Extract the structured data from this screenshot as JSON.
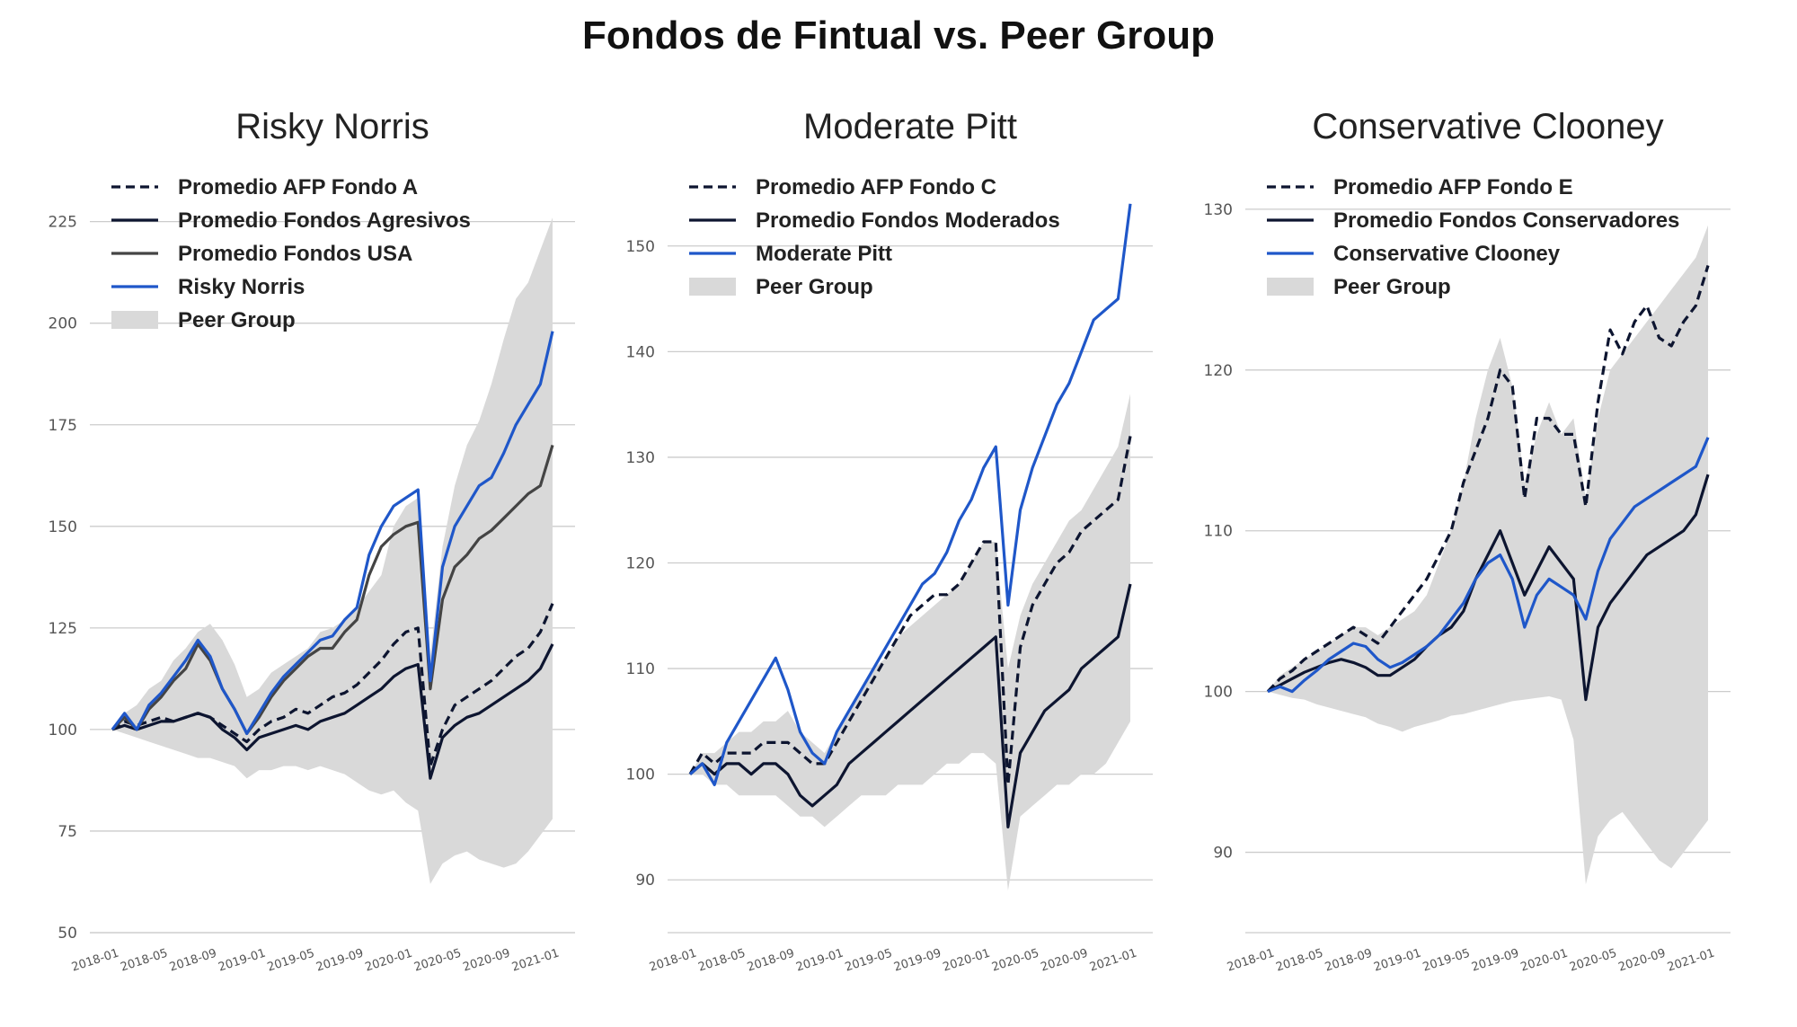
{
  "title": "Fondos de Fintual vs. Peer Group",
  "colors": {
    "blue": "#1f57c9",
    "navy": "#0d1530",
    "gray_line": "#444444",
    "band": "#d9d9d9",
    "grid": "#cccccc"
  },
  "chart_data": [
    {
      "type": "line",
      "title": "Risky Norris",
      "xlabel": "",
      "ylabel": "",
      "ylim": [
        50,
        232
      ],
      "yticks": [
        50,
        75,
        100,
        125,
        150,
        175,
        200,
        225
      ],
      "xticks": [
        "2018-01",
        "2018-05",
        "2018-09",
        "2019-01",
        "2019-05",
        "2019-09",
        "2020-01",
        "2020-05",
        "2020-09",
        "2021-01"
      ],
      "grid": "horizontal",
      "legend_position": "top-left",
      "x": [
        "2018-01",
        "2018-02",
        "2018-03",
        "2018-04",
        "2018-05",
        "2018-06",
        "2018-07",
        "2018-08",
        "2018-09",
        "2018-10",
        "2018-11",
        "2018-12",
        "2019-01",
        "2019-02",
        "2019-03",
        "2019-04",
        "2019-05",
        "2019-06",
        "2019-07",
        "2019-08",
        "2019-09",
        "2019-10",
        "2019-11",
        "2019-12",
        "2020-01",
        "2020-02",
        "2020-03",
        "2020-04",
        "2020-05",
        "2020-06",
        "2020-07",
        "2020-08",
        "2020-09",
        "2020-10",
        "2020-11",
        "2020-12",
        "2021-01"
      ],
      "band": {
        "name": "Peer Group",
        "low": [
          100,
          99,
          98,
          97,
          96,
          95,
          94,
          93,
          93,
          92,
          91,
          88,
          90,
          90,
          91,
          91,
          90,
          91,
          90,
          89,
          87,
          85,
          84,
          85,
          82,
          80,
          62,
          67,
          69,
          70,
          68,
          67,
          66,
          67,
          70,
          74,
          78
        ],
        "high": [
          100,
          104,
          106,
          110,
          112,
          117,
          120,
          124,
          126,
          122,
          116,
          108,
          110,
          114,
          116,
          118,
          120,
          124,
          125,
          127,
          130,
          134,
          138,
          150,
          155,
          157,
          118,
          145,
          160,
          170,
          176,
          185,
          196,
          206,
          210,
          218,
          226
        ]
      },
      "series": [
        {
          "name": "Promedio AFP Fondo A",
          "style": "dashed",
          "color": "#0d1530",
          "values": [
            100,
            102,
            101,
            102,
            103,
            102,
            103,
            104,
            103,
            101,
            99,
            97,
            100,
            102,
            103,
            105,
            104,
            106,
            108,
            109,
            111,
            114,
            117,
            121,
            124,
            125,
            91,
            100,
            106,
            108,
            110,
            112,
            115,
            118,
            120,
            124,
            131
          ]
        },
        {
          "name": "Promedio Fondos Agresivos",
          "style": "solid",
          "color": "#0d1530",
          "values": [
            100,
            101,
            100,
            101,
            102,
            102,
            103,
            104,
            103,
            100,
            98,
            95,
            98,
            99,
            100,
            101,
            100,
            102,
            103,
            104,
            106,
            108,
            110,
            113,
            115,
            116,
            88,
            98,
            101,
            103,
            104,
            106,
            108,
            110,
            112,
            115,
            121
          ]
        },
        {
          "name": "Promedio Fondos USA",
          "style": "solid",
          "color": "#444444",
          "values": [
            100,
            103,
            100,
            105,
            108,
            112,
            115,
            121,
            117,
            110,
            105,
            99,
            103,
            108,
            112,
            115,
            118,
            120,
            120,
            124,
            127,
            138,
            145,
            148,
            150,
            151,
            110,
            132,
            140,
            143,
            147,
            149,
            152,
            155,
            158,
            160,
            170
          ]
        },
        {
          "name": "Risky Norris",
          "style": "solid",
          "color": "#1f57c9",
          "values": [
            100,
            104,
            100,
            106,
            109,
            113,
            117,
            122,
            118,
            110,
            105,
            99,
            104,
            109,
            113,
            116,
            119,
            122,
            123,
            127,
            130,
            143,
            150,
            155,
            157,
            159,
            112,
            140,
            150,
            155,
            160,
            162,
            168,
            175,
            180,
            185,
            198
          ]
        }
      ]
    },
    {
      "type": "line",
      "title": "Moderate Pitt",
      "xlabel": "",
      "ylabel": "",
      "ylim": [
        85,
        155
      ],
      "yticks": [
        90,
        100,
        110,
        120,
        130,
        140,
        150
      ],
      "xticks": [
        "2018-01",
        "2018-05",
        "2018-09",
        "2019-01",
        "2019-05",
        "2019-09",
        "2020-01",
        "2020-05",
        "2020-09",
        "2021-01"
      ],
      "grid": "horizontal",
      "legend_position": "top-left",
      "x": [
        "2018-01",
        "2018-02",
        "2018-03",
        "2018-04",
        "2018-05",
        "2018-06",
        "2018-07",
        "2018-08",
        "2018-09",
        "2018-10",
        "2018-11",
        "2018-12",
        "2019-01",
        "2019-02",
        "2019-03",
        "2019-04",
        "2019-05",
        "2019-06",
        "2019-07",
        "2019-08",
        "2019-09",
        "2019-10",
        "2019-11",
        "2019-12",
        "2020-01",
        "2020-02",
        "2020-03",
        "2020-04",
        "2020-05",
        "2020-06",
        "2020-07",
        "2020-08",
        "2020-09",
        "2020-10",
        "2020-11",
        "2020-12",
        "2021-01"
      ],
      "band": {
        "name": "Peer Group",
        "low": [
          100,
          100,
          99,
          99,
          98,
          98,
          98,
          98,
          97,
          96,
          96,
          95,
          96,
          97,
          98,
          98,
          98,
          99,
          99,
          99,
          100,
          101,
          101,
          102,
          102,
          101,
          89,
          96,
          97,
          98,
          99,
          99,
          100,
          100,
          101,
          103,
          105
        ],
        "high": [
          100,
          102,
          102,
          103,
          104,
          104,
          105,
          105,
          106,
          104,
          103,
          102,
          104,
          106,
          108,
          110,
          111,
          113,
          114,
          115,
          116,
          117,
          118,
          120,
          122,
          122,
          110,
          115,
          118,
          120,
          122,
          124,
          125,
          127,
          129,
          131,
          136
        ]
      },
      "series": [
        {
          "name": "Promedio AFP Fondo C",
          "style": "dashed",
          "color": "#0d1530",
          "values": [
            100,
            102,
            101,
            102,
            102,
            102,
            103,
            103,
            103,
            102,
            101,
            101,
            103,
            105,
            107,
            109,
            111,
            113,
            115,
            116,
            117,
            117,
            118,
            120,
            122,
            122,
            99,
            112,
            116,
            118,
            120,
            121,
            123,
            124,
            125,
            126,
            132
          ]
        },
        {
          "name": "Promedio Fondos Moderados",
          "style": "solid",
          "color": "#0d1530",
          "values": [
            100,
            101,
            100,
            101,
            101,
            100,
            101,
            101,
            100,
            98,
            97,
            98,
            99,
            101,
            102,
            103,
            104,
            105,
            106,
            107,
            108,
            109,
            110,
            111,
            112,
            113,
            95,
            102,
            104,
            106,
            107,
            108,
            110,
            111,
            112,
            113,
            118
          ]
        },
        {
          "name": "Moderate Pitt",
          "style": "solid",
          "color": "#1f57c9",
          "values": [
            100,
            101,
            99,
            103,
            105,
            107,
            109,
            111,
            108,
            104,
            102,
            101,
            104,
            106,
            108,
            110,
            112,
            114,
            116,
            118,
            119,
            121,
            124,
            126,
            129,
            131,
            116,
            125,
            129,
            132,
            135,
            137,
            140,
            143,
            144,
            145,
            154
          ]
        }
      ]
    },
    {
      "type": "line",
      "title": "Conservative Clooney",
      "xlabel": "",
      "ylabel": "",
      "ylim": [
        85,
        131
      ],
      "yticks": [
        90,
        100,
        110,
        120,
        130
      ],
      "xticks": [
        "2018-01",
        "2018-05",
        "2018-09",
        "2019-01",
        "2019-05",
        "2019-09",
        "2020-01",
        "2020-05",
        "2020-09",
        "2021-01"
      ],
      "grid": "horizontal",
      "legend_position": "top-left",
      "x": [
        "2018-01",
        "2018-02",
        "2018-03",
        "2018-04",
        "2018-05",
        "2018-06",
        "2018-07",
        "2018-08",
        "2018-09",
        "2018-10",
        "2018-11",
        "2018-12",
        "2019-01",
        "2019-02",
        "2019-03",
        "2019-04",
        "2019-05",
        "2019-06",
        "2019-07",
        "2019-08",
        "2019-09",
        "2019-10",
        "2019-11",
        "2019-12",
        "2020-01",
        "2020-02",
        "2020-03",
        "2020-04",
        "2020-05",
        "2020-06",
        "2020-07",
        "2020-08",
        "2020-09",
        "2020-10",
        "2020-11",
        "2020-12",
        "2021-01"
      ],
      "band": {
        "name": "Peer Group",
        "low": [
          100,
          99.8,
          99.6,
          99.5,
          99.2,
          99,
          98.8,
          98.6,
          98.4,
          98,
          97.8,
          97.5,
          97.8,
          98,
          98.2,
          98.5,
          98.6,
          98.8,
          99,
          99.2,
          99.4,
          99.5,
          99.6,
          99.7,
          99.5,
          97,
          88,
          91,
          92,
          92.5,
          91.5,
          90.5,
          89.5,
          89,
          90,
          91,
          92
        ],
        "high": [
          100,
          101,
          101.5,
          102,
          102.5,
          103,
          103.5,
          104,
          104,
          103.5,
          104,
          104.5,
          105,
          106,
          108,
          110,
          113,
          117,
          120,
          122,
          119,
          113,
          116,
          118,
          116,
          117,
          112,
          117,
          120,
          121,
          122,
          123,
          124,
          125,
          126,
          127,
          129
        ]
      },
      "series": [
        {
          "name": "Promedio AFP Fondo E",
          "style": "dashed",
          "color": "#0d1530",
          "values": [
            100,
            100.8,
            101.3,
            102,
            102.5,
            103,
            103.5,
            104,
            103.5,
            103,
            104,
            105,
            106,
            107,
            108.5,
            110,
            113,
            115,
            117,
            120,
            119,
            112,
            117,
            117,
            116,
            116,
            111.5,
            118,
            122.5,
            121,
            123,
            124,
            122,
            121.5,
            123,
            124,
            126.5
          ]
        },
        {
          "name": "Promedio Fondos Conservadores",
          "style": "solid",
          "color": "#0d1530",
          "values": [
            100,
            100.4,
            100.8,
            101.2,
            101.5,
            101.8,
            102,
            101.8,
            101.5,
            101,
            101,
            101.5,
            102,
            102.8,
            103.5,
            104,
            105,
            107,
            108.5,
            110,
            108,
            106,
            107.5,
            109,
            108,
            107,
            99.5,
            104,
            105.5,
            106.5,
            107.5,
            108.5,
            109,
            109.5,
            110,
            111,
            113.5
          ]
        },
        {
          "name": "Conservative Clooney",
          "style": "solid",
          "color": "#1f57c9",
          "values": [
            100,
            100.3,
            100,
            100.7,
            101.3,
            102,
            102.5,
            103,
            102.8,
            102,
            101.5,
            101.8,
            102.3,
            102.8,
            103.5,
            104.5,
            105.5,
            107,
            108,
            108.5,
            107,
            104,
            106,
            107,
            106.5,
            106,
            104.5,
            107.5,
            109.5,
            110.5,
            111.5,
            112,
            112.5,
            113,
            113.5,
            114,
            115.8
          ]
        }
      ]
    }
  ]
}
